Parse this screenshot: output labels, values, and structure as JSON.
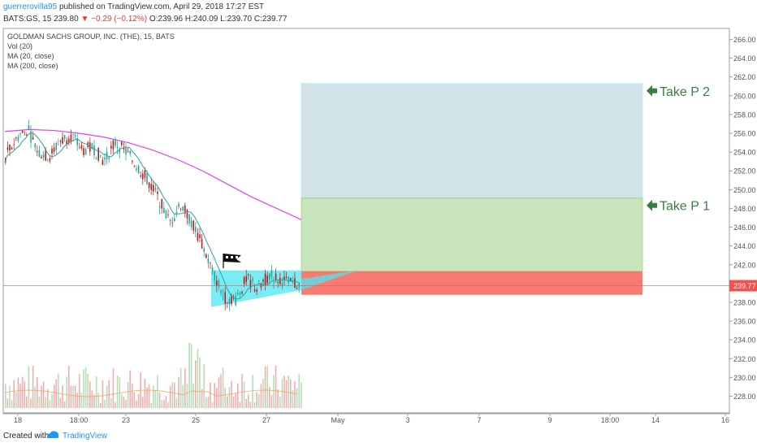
{
  "header": {
    "author": "guerrerovilla95",
    "published": "published on TradingView.com, April 29, 2018 17:27 EST",
    "symbol": "BATS:GS, 15",
    "last": "239.80",
    "change": "▼ −0.29 (−0.12%)",
    "ohlc": "O:239.96 H:240.09 L:239.70 C:239.77"
  },
  "legend": {
    "title": "GOLDMAN SACHS GROUP, INC. (THE), 15, BATS",
    "vol": "Vol (20)",
    "ma20": "MA (20, close)",
    "ma200": "MA (200, close)"
  },
  "annotations": {
    "tp2": "Take P 2",
    "tp1": "Take P 1"
  },
  "footer": {
    "created": "Created with",
    "brand": "TradingView"
  },
  "colors": {
    "up": "#26a69a",
    "down": "#ef5350",
    "ma20": "#26a69a",
    "ma200": "#e040fb",
    "price_line": "#ef5350",
    "tp_arrow": "#3a7d44",
    "triangle": "#4ee6f0"
  },
  "chart_data": {
    "type": "candlestick",
    "title": "GOLDMAN SACHS GROUP, INC. (THE), 15, BATS",
    "ylim": [
      226,
      267
    ],
    "y_ticks": [
      "228.00",
      "230.00",
      "232.00",
      "234.00",
      "236.00",
      "238.00",
      "240.00",
      "242.00",
      "244.00",
      "246.00",
      "248.00",
      "250.00",
      "252.00",
      "254.00",
      "256.00",
      "258.00",
      "260.00",
      "262.00",
      "264.00",
      "266.00"
    ],
    "x_ticks": [
      "18",
      "18:00",
      "23",
      "25",
      "27",
      "May",
      "3",
      "7",
      "9",
      "18:00",
      "14",
      "16"
    ],
    "current_price_label": "239.77",
    "price_path": [
      {
        "t": "18",
        "price": 253.5
      },
      {
        "t": "18",
        "price": 255.5
      },
      {
        "t": "18",
        "price": 256.5
      },
      {
        "t": "18",
        "price": 254.0
      },
      {
        "t": "18:00",
        "price": 253.5
      },
      {
        "t": "18:00",
        "price": 255.2
      },
      {
        "t": "18:00",
        "price": 255.8
      },
      {
        "t": "18:00",
        "price": 254.2
      },
      {
        "t": "18:00",
        "price": 254.5
      },
      {
        "t": "18:00",
        "price": 253.0
      },
      {
        "t": "18:00",
        "price": 255.0
      },
      {
        "t": "18:00",
        "price": 254.0
      },
      {
        "t": "23",
        "price": 252.5
      },
      {
        "t": "23",
        "price": 251.0
      },
      {
        "t": "23",
        "price": 249.0
      },
      {
        "t": "23",
        "price": 246.5
      },
      {
        "t": "23",
        "price": 248.5
      },
      {
        "t": "23",
        "price": 246.5
      },
      {
        "t": "23",
        "price": 244.0
      },
      {
        "t": "25",
        "price": 241.0
      },
      {
        "t": "25",
        "price": 238.5
      },
      {
        "t": "25",
        "price": 238.3
      },
      {
        "t": "25",
        "price": 240.5
      },
      {
        "t": "25",
        "price": 239.5
      },
      {
        "t": "27",
        "price": 240.8
      },
      {
        "t": "27",
        "price": 240.5
      },
      {
        "t": "27",
        "price": 240.0
      },
      {
        "t": "27",
        "price": 239.8
      }
    ],
    "ma200_path": [
      256.2,
      256.4,
      256.3,
      256.0,
      255.6,
      255.0,
      254.2,
      253.2,
      252.0,
      250.6,
      249.2,
      248.0,
      246.8
    ],
    "zones": {
      "tp2_level": 261.3,
      "tp1_level": 249.1,
      "entry_level": 241.3,
      "stop_level": 238.8
    },
    "volume": {
      "label": "Vol (20)"
    }
  }
}
